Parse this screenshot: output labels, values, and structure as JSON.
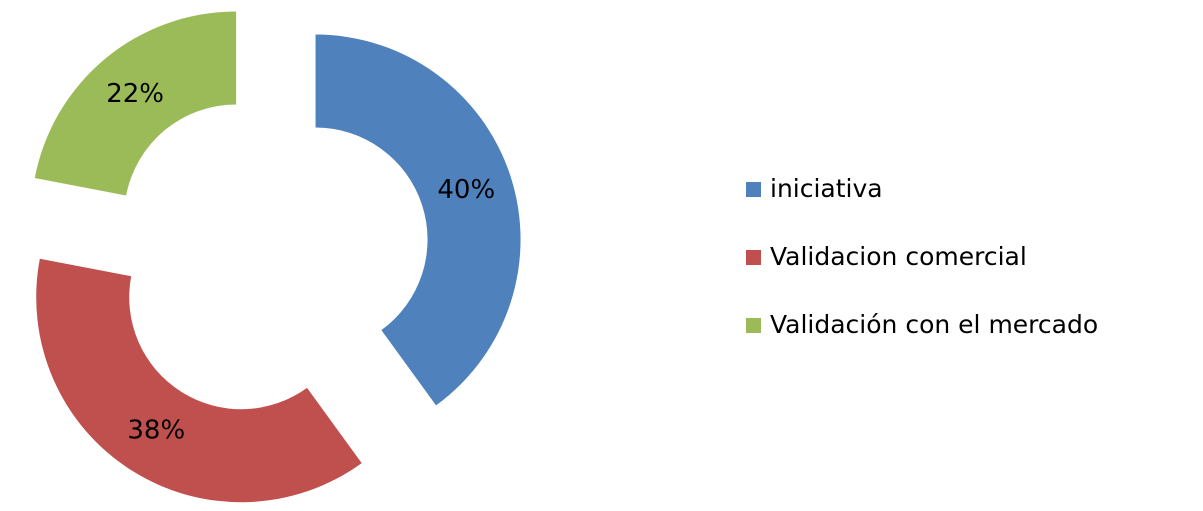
{
  "chart_data": {
    "type": "donut",
    "categories": [
      "iniciativa",
      "Validacion comercial",
      "Validación con el mercado"
    ],
    "values": [
      40,
      38,
      22
    ],
    "value_labels": [
      "40%",
      "38%",
      "22%"
    ],
    "colors": [
      "#4f81bd",
      "#c0504d",
      "#9bbb59"
    ],
    "legend": "right"
  }
}
